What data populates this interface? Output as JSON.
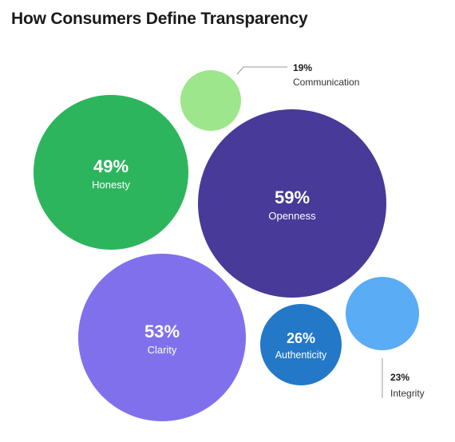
{
  "chart_data": {
    "type": "bubble",
    "title": "How Consumers Define Transparency",
    "unit": "%",
    "items": [
      {
        "label": "Honesty",
        "value": 49,
        "display": "49%",
        "color": "#2db55d"
      },
      {
        "label": "Openness",
        "value": 59,
        "display": "59%",
        "color": "#473a99"
      },
      {
        "label": "Clarity",
        "value": 53,
        "display": "53%",
        "color": "#8070ec"
      },
      {
        "label": "Communication",
        "value": 19,
        "display": "19%",
        "color": "#9de68c"
      },
      {
        "label": "Authenticity",
        "value": 26,
        "display": "26%",
        "color": "#2378c8"
      },
      {
        "label": "Integrity",
        "value": 23,
        "display": "23%",
        "color": "#5aacf5"
      }
    ]
  }
}
